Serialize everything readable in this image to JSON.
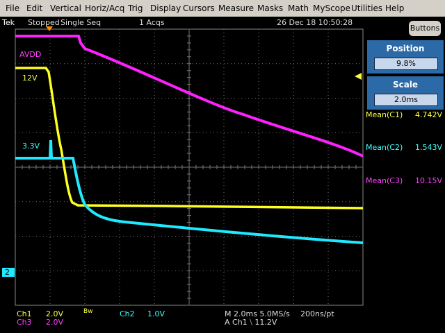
{
  "menu": {
    "items": [
      "File",
      "Edit",
      "Vertical",
      "Horiz/Acq",
      "Trig",
      "Display",
      "Cursors",
      "Measure",
      "Masks",
      "Math",
      "MyScope",
      "Utilities",
      "Help"
    ]
  },
  "status": {
    "brand": "Tek",
    "state": "Stopped",
    "mode": "Single Seq",
    "acquisitions": "1 Acqs",
    "datetime": "26 Dec 18 10:50:28"
  },
  "side_panel": {
    "button": "Buttons",
    "position": {
      "label": "Position",
      "value": "9.8%"
    },
    "scale": {
      "label": "Scale",
      "value": "2.0ms"
    },
    "measurements": [
      {
        "label": "Mean(C1)",
        "value": "4.742V"
      },
      {
        "label": "Mean(C2)",
        "value": "1.543V"
      },
      {
        "label": "Mean(C3)",
        "value": "10.15V"
      }
    ]
  },
  "screen": {
    "trace_labels": [
      "AVDD",
      "12V",
      "3.3V"
    ],
    "ground_marker": "2"
  },
  "readout": {
    "ch1": "Ch1",
    "ch1_scale": "2.0V",
    "ch3": "Ch3",
    "ch3_scale": "2.0V",
    "bw": "Bw",
    "ch2": "Ch2",
    "ch2_scale": "1.0V",
    "timebase": "M 2.0ms 5.0MS/s",
    "resolution": "200ns/pt",
    "trigger": "A  Ch1  ⧹  11.2V"
  }
}
